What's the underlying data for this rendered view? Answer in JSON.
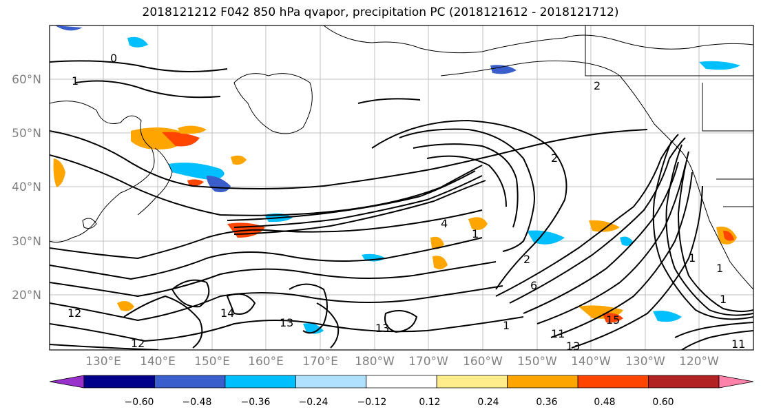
{
  "title": "2018121212 F042 850 hPa qvapor, precipitation PC (2018121612 - 2018121712)",
  "map": {
    "lat_labels": [
      "60°N",
      "50°N",
      "40°N",
      "30°N",
      "20°N"
    ],
    "lon_labels": [
      "130°E",
      "140°E",
      "150°E",
      "160°E",
      "170°E",
      "180°W",
      "170°W",
      "160°W",
      "150°W",
      "140°W",
      "130°W",
      "120°W"
    ],
    "contour_labels": [
      "1",
      "0",
      "12",
      "12",
      "13",
      "14",
      "13",
      "11",
      "13",
      "11",
      "15",
      "2",
      "4",
      "1",
      "2",
      "6",
      "1",
      "1",
      "1",
      "1",
      "2"
    ]
  },
  "colorbar": {
    "ticks": [
      "−0.60",
      "−0.48",
      "−0.36",
      "−0.24",
      "−0.12",
      "0.12",
      "0.24",
      "0.36",
      "0.48",
      "0.60"
    ],
    "colors": [
      "#9932cc",
      "#00008b",
      "#3a5fcd",
      "#00bfff",
      "#b0e2ff",
      "#ffffff",
      "#ffec8b",
      "#ffa500",
      "#ff4500",
      "#b22222",
      "#ff82ab"
    ]
  }
}
